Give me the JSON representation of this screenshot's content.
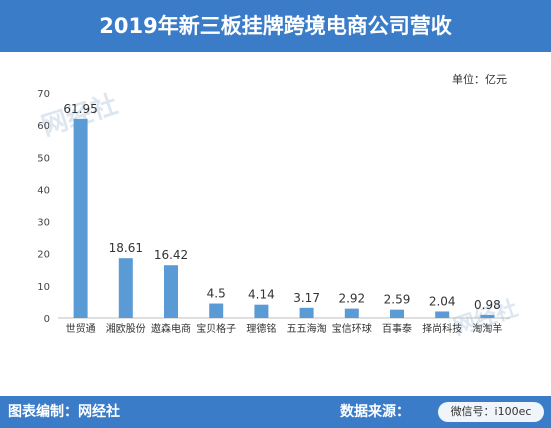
{
  "title": "2019年新三板挂牌跨境电商公司营收",
  "unit_label": "单位：亿元",
  "footer": {
    "left": "图表编制：网经社",
    "right": "数据来源：",
    "wechat": "微信号：i100ec",
    "watermark_mark": "网经社"
  },
  "colors": {
    "header": "#3a7cc8",
    "bar": "#5b9bd5"
  },
  "chart_data": {
    "type": "bar",
    "title": "2019年新三板挂牌跨境电商公司营收",
    "xlabel": "",
    "ylabel": "",
    "ylim": [
      0,
      70
    ],
    "yticks": [
      0,
      10,
      20,
      30,
      40,
      50,
      60,
      70
    ],
    "grid": false,
    "legend": "none",
    "categories": [
      "世贸通",
      "湘欧股份",
      "遨森电商",
      "宝贝格子",
      "理德铭",
      "五五海淘",
      "宝信环球",
      "百事泰",
      "择尚科技",
      "淘淘羊"
    ],
    "values": [
      61.95,
      18.61,
      16.42,
      4.5,
      4.14,
      3.17,
      2.92,
      2.59,
      2.04,
      0.98
    ],
    "value_labels": [
      "61.95",
      "18.61",
      "16.42",
      "4.5",
      "4.14",
      "3.17",
      "2.92",
      "2.59",
      "2.04",
      "0.98"
    ]
  }
}
